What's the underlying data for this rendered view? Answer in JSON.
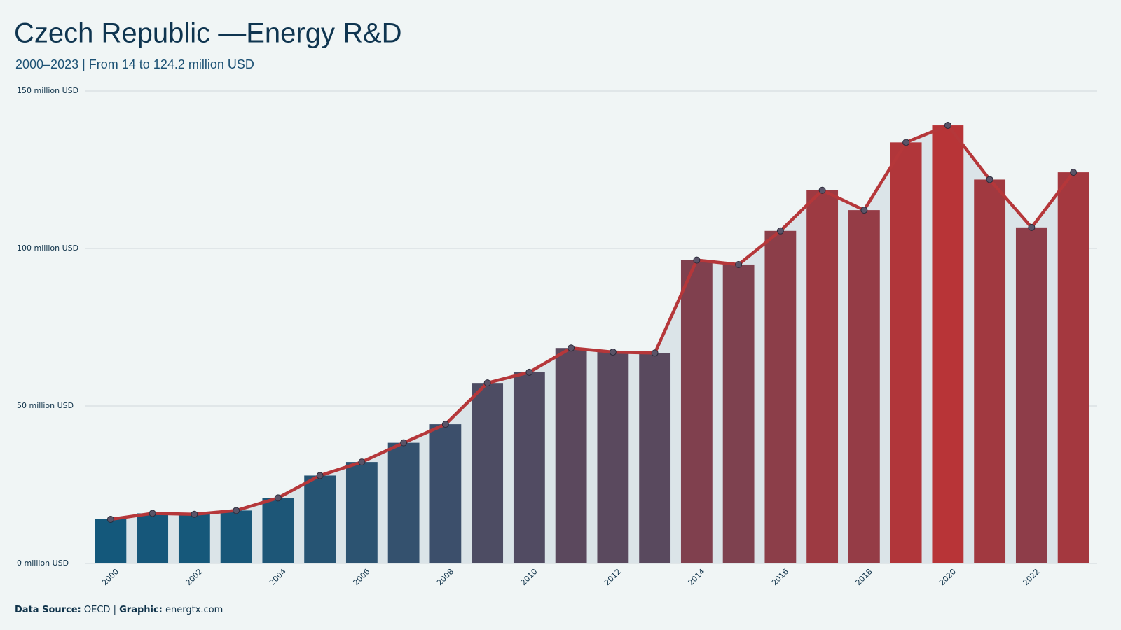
{
  "chart_data": {
    "type": "bar_line_area",
    "title": "Czech Republic —Energy R&D",
    "subtitle": "2000–2023 | From 14 to 124.2 million USD",
    "categories": [
      "2000",
      null,
      "2002",
      null,
      "2004",
      null,
      "2006",
      null,
      "2008",
      null,
      "2010",
      null,
      "2012",
      null,
      "2014",
      null,
      "2016",
      null,
      "2018",
      null,
      "2020",
      null,
      "2022",
      null
    ],
    "values": [
      14,
      15.9,
      15.6,
      16.8,
      20.8,
      27.9,
      32.2,
      38.3,
      44.2,
      57.3,
      60.7,
      68.4,
      67.1,
      66.8,
      96.3,
      94.9,
      105.6,
      118.5,
      112.2,
      133.7,
      139.1,
      121.9,
      106.7,
      124.2
    ],
    "ylim": [
      0,
      150
    ],
    "yticks": [
      {
        "value": 0,
        "label": "0 million USD"
      },
      {
        "value": 50,
        "label": "50 million USD"
      },
      {
        "value": 100,
        "label": "100 million USD"
      },
      {
        "value": 150,
        "label": "150 million USD"
      }
    ],
    "grid": true,
    "bar_colors": [
      "#14587b",
      "#b83437"
    ],
    "line_color": "#b5373a",
    "area_color": "#dbe4e8",
    "source_label": "Data Source:",
    "source": "OECD",
    "graphic_label": "Graphic:",
    "graphic": "energtx.com"
  }
}
